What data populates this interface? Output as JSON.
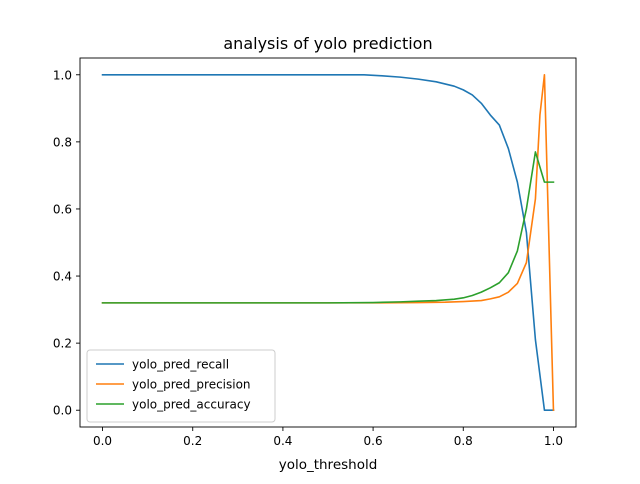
{
  "chart_data": {
    "type": "line",
    "title": "analysis of yolo prediction",
    "xlabel": "yolo_threshold",
    "ylabel": "",
    "xlim": [
      -0.05,
      1.05
    ],
    "ylim": [
      -0.05,
      1.05
    ],
    "xticks": [
      0.0,
      0.2,
      0.4,
      0.6,
      0.8,
      1.0
    ],
    "xtick_labels": [
      "0.0",
      "0.2",
      "0.4",
      "0.6",
      "0.8",
      "1.0"
    ],
    "yticks": [
      0.0,
      0.2,
      0.4,
      0.6,
      0.8,
      1.0
    ],
    "ytick_labels": [
      "0.0",
      "0.2",
      "0.4",
      "0.6",
      "0.8",
      "1.0"
    ],
    "grid": false,
    "legend_position": "lower-left",
    "series": [
      {
        "name": "yolo_pred_recall",
        "color": "#1f77b4",
        "x": [
          0.0,
          0.1,
          0.2,
          0.3,
          0.4,
          0.5,
          0.58,
          0.62,
          0.66,
          0.7,
          0.74,
          0.78,
          0.8,
          0.82,
          0.84,
          0.86,
          0.88,
          0.9,
          0.92,
          0.94,
          0.96,
          0.98,
          1.0
        ],
        "y": [
          1.0,
          1.0,
          1.0,
          1.0,
          1.0,
          1.0,
          1.0,
          0.997,
          0.993,
          0.987,
          0.979,
          0.966,
          0.955,
          0.94,
          0.915,
          0.88,
          0.85,
          0.78,
          0.68,
          0.53,
          0.21,
          0.0,
          0.0
        ]
      },
      {
        "name": "yolo_pred_precision",
        "color": "#ff7f0e",
        "x": [
          0.0,
          0.1,
          0.2,
          0.3,
          0.4,
          0.5,
          0.6,
          0.7,
          0.76,
          0.8,
          0.84,
          0.86,
          0.88,
          0.9,
          0.92,
          0.94,
          0.96,
          0.97,
          0.98,
          1.0
        ],
        "y": [
          0.32,
          0.32,
          0.32,
          0.32,
          0.32,
          0.32,
          0.32,
          0.321,
          0.322,
          0.324,
          0.327,
          0.332,
          0.338,
          0.352,
          0.378,
          0.44,
          0.63,
          0.88,
          1.0,
          0.0
        ]
      },
      {
        "name": "yolo_pred_accuracy",
        "color": "#2ca02c",
        "x": [
          0.0,
          0.1,
          0.2,
          0.3,
          0.4,
          0.5,
          0.6,
          0.66,
          0.7,
          0.74,
          0.78,
          0.8,
          0.82,
          0.84,
          0.86,
          0.88,
          0.9,
          0.92,
          0.94,
          0.96,
          0.98,
          1.0
        ],
        "y": [
          0.32,
          0.32,
          0.32,
          0.32,
          0.32,
          0.32,
          0.321,
          0.323,
          0.325,
          0.327,
          0.331,
          0.335,
          0.342,
          0.352,
          0.365,
          0.38,
          0.41,
          0.475,
          0.6,
          0.77,
          0.68,
          0.68
        ]
      }
    ]
  }
}
